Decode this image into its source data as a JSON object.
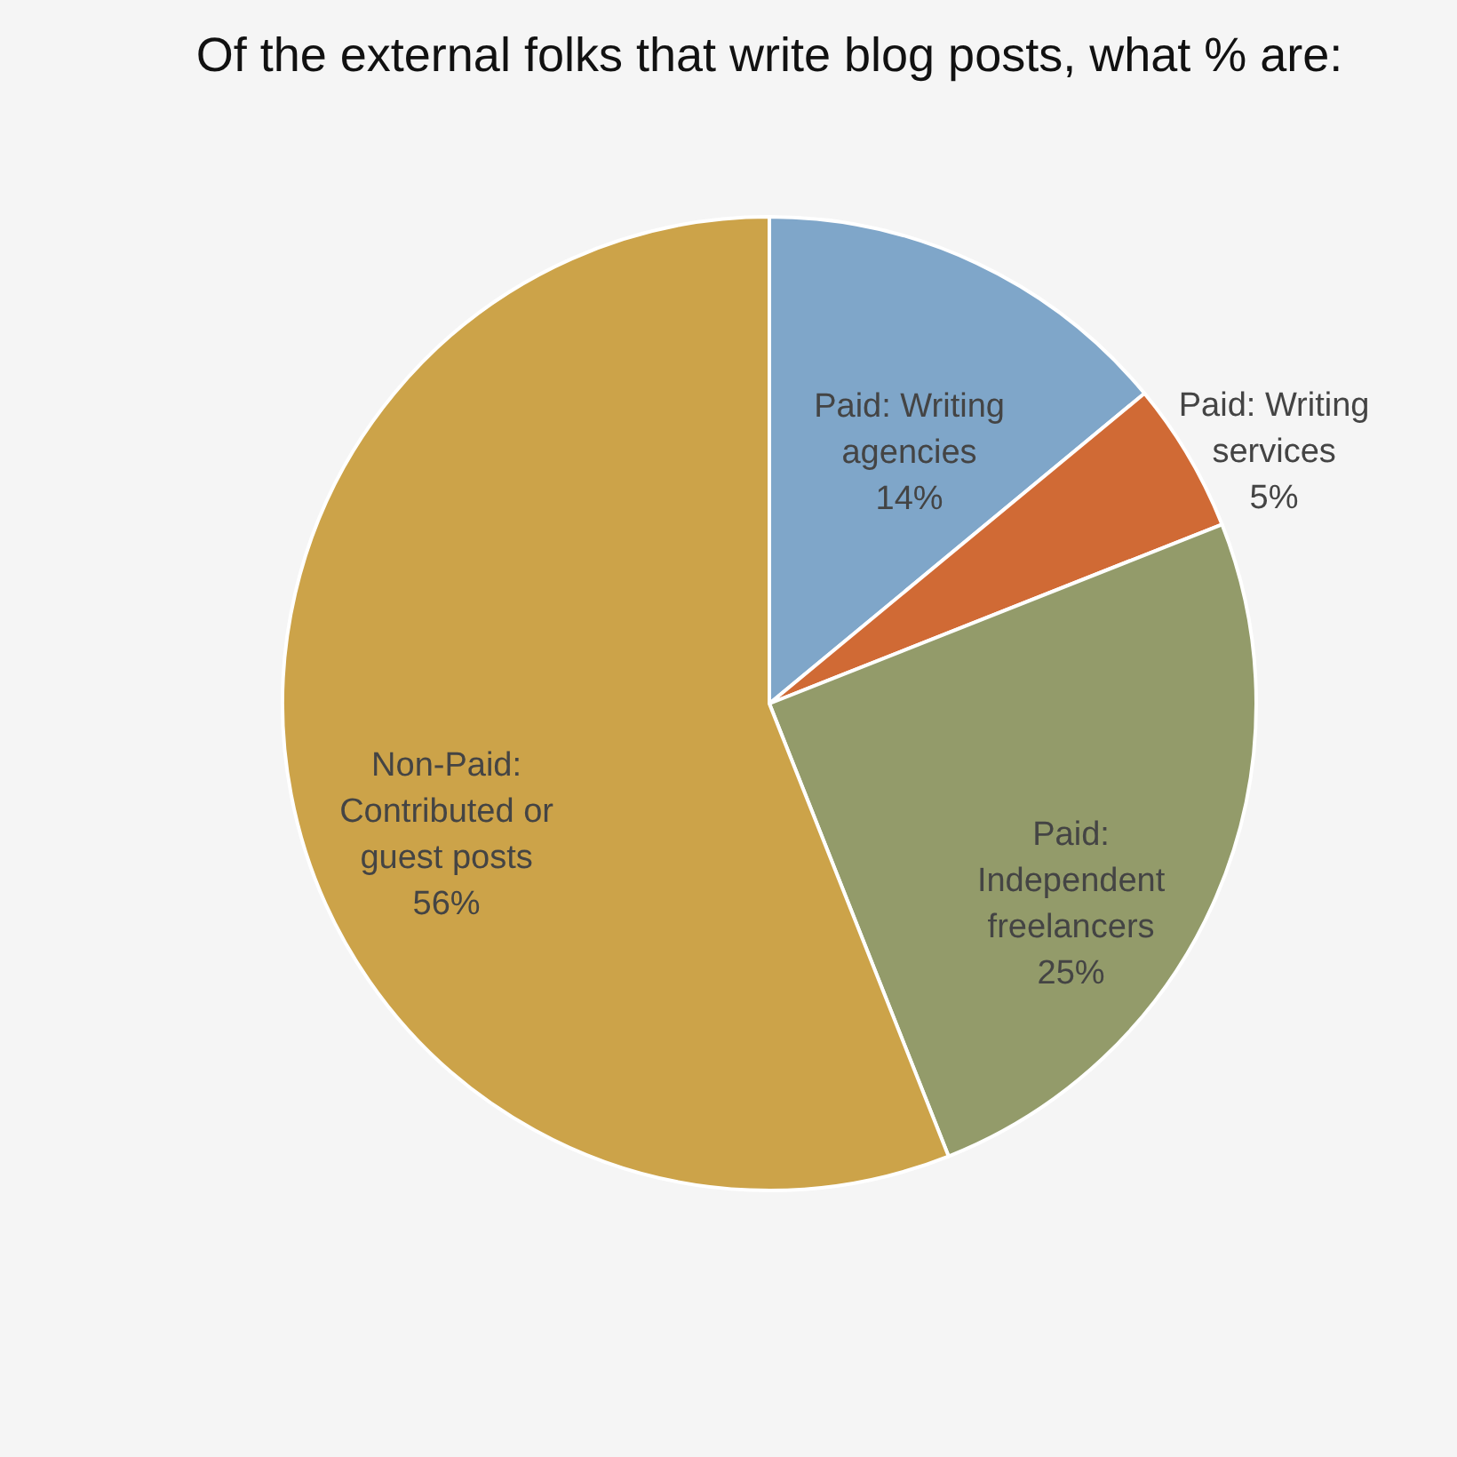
{
  "chart_data": {
    "type": "pie",
    "title": "Of the external folks that write blog posts, what % are:",
    "categories": [
      "Paid: Writing agencies",
      "Paid: Writing services",
      "Paid: Independent freelancers",
      "Non-Paid: Contributed or guest posts"
    ],
    "values": [
      14,
      5,
      25,
      56
    ],
    "colors": [
      "#7fa6c9",
      "#d06a35",
      "#939b6a",
      "#cca349"
    ],
    "value_labels": [
      "14%",
      "5%",
      "25%",
      "56%"
    ],
    "legend": false
  }
}
